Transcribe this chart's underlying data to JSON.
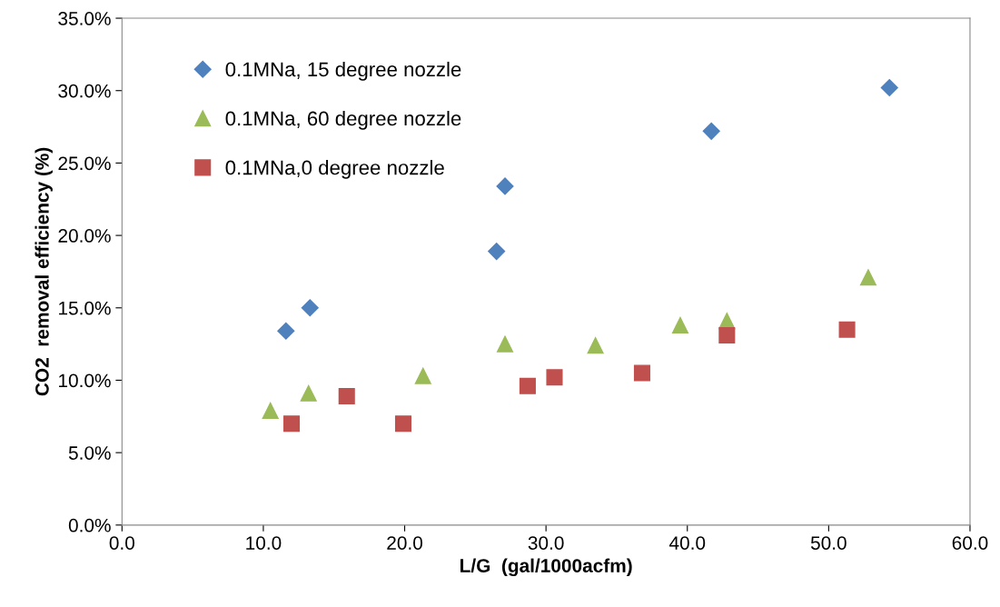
{
  "chart_data": {
    "type": "scatter",
    "xlabel": "L/G  (gal/1000acfm)",
    "ylabel": "CO2  removal efficiency (%)",
    "xlim": [
      0,
      60
    ],
    "xticks": [
      {
        "value": 0,
        "label": "0.0"
      },
      {
        "value": 10,
        "label": "10.0"
      },
      {
        "value": 20,
        "label": "20.0"
      },
      {
        "value": 30,
        "label": "30.0"
      },
      {
        "value": 40,
        "label": "40.0"
      },
      {
        "value": 50,
        "label": "50.0"
      },
      {
        "value": 60,
        "label": "60.0"
      }
    ],
    "ylim": [
      0,
      35
    ],
    "yticks": [
      {
        "value": 0,
        "label": "0.0%"
      },
      {
        "value": 5,
        "label": "5.0%"
      },
      {
        "value": 10,
        "label": "10.0%"
      },
      {
        "value": 15,
        "label": "15.0%"
      },
      {
        "value": 20,
        "label": "20.0%"
      },
      {
        "value": 25,
        "label": "25.0%"
      },
      {
        "value": 30,
        "label": "30.0%"
      },
      {
        "value": 35,
        "label": "35.0%"
      }
    ],
    "grid": false,
    "legend": "top left",
    "series": [
      {
        "name": "0.1MNa, 15 degree nozzle",
        "color": "#4f81bd",
        "marker": "diamond",
        "x": [
          11.6,
          13.3,
          26.5,
          27.1,
          41.7,
          54.3
        ],
        "values": [
          13.4,
          15.0,
          18.9,
          23.4,
          27.2,
          30.2
        ]
      },
      {
        "name": "0.1MNa, 60 degree nozzle",
        "color": "#9bbb59",
        "marker": "triangle",
        "x": [
          10.5,
          13.2,
          21.3,
          27.1,
          33.5,
          39.5,
          42.8,
          52.8
        ],
        "values": [
          7.9,
          9.1,
          10.3,
          12.5,
          12.4,
          13.8,
          14.1,
          17.1
        ]
      },
      {
        "name": "0.1MNa,0 degree nozzle",
        "color": "#c0504d",
        "marker": "square",
        "x": [
          12.0,
          15.9,
          19.9,
          28.7,
          30.6,
          36.8,
          42.8,
          51.3
        ],
        "values": [
          7.0,
          8.9,
          7.0,
          9.6,
          10.2,
          10.5,
          13.1,
          13.5
        ]
      }
    ]
  }
}
